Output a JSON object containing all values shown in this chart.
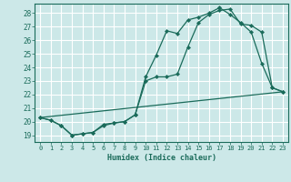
{
  "xlabel": "Humidex (Indice chaleur)",
  "bg_color": "#cce8e8",
  "grid_color": "#ffffff",
  "line_color": "#1a6b5a",
  "xlim": [
    -0.5,
    23.5
  ],
  "ylim": [
    18.5,
    28.7
  ],
  "xticks": [
    0,
    1,
    2,
    3,
    4,
    5,
    6,
    7,
    8,
    9,
    10,
    11,
    12,
    13,
    14,
    15,
    16,
    17,
    18,
    19,
    20,
    21,
    22,
    23
  ],
  "yticks": [
    19,
    20,
    21,
    22,
    23,
    24,
    25,
    26,
    27,
    28
  ],
  "line1_x": [
    0,
    1,
    2,
    3,
    4,
    5,
    6,
    7,
    8,
    9,
    10,
    11,
    12,
    13,
    14,
    15,
    16,
    17,
    18,
    19,
    20,
    21,
    22,
    23
  ],
  "line1_y": [
    20.3,
    20.1,
    19.7,
    19.0,
    19.1,
    19.2,
    19.8,
    19.9,
    20.0,
    20.5,
    23.3,
    24.9,
    26.7,
    26.5,
    27.5,
    27.7,
    28.0,
    28.4,
    27.9,
    27.3,
    26.6,
    24.3,
    22.5,
    22.2
  ],
  "line2_x": [
    0,
    1,
    2,
    3,
    4,
    5,
    6,
    7,
    8,
    9,
    10,
    11,
    12,
    13,
    14,
    15,
    16,
    17,
    18,
    19,
    20,
    21,
    22,
    23
  ],
  "line2_y": [
    20.3,
    20.1,
    19.7,
    19.0,
    19.1,
    19.2,
    19.7,
    19.9,
    20.0,
    20.5,
    23.0,
    23.3,
    23.3,
    23.5,
    25.5,
    27.3,
    27.9,
    28.2,
    28.3,
    27.2,
    27.1,
    26.6,
    22.5,
    22.2
  ],
  "line3_x": [
    0,
    23
  ],
  "line3_y": [
    20.3,
    22.2
  ]
}
